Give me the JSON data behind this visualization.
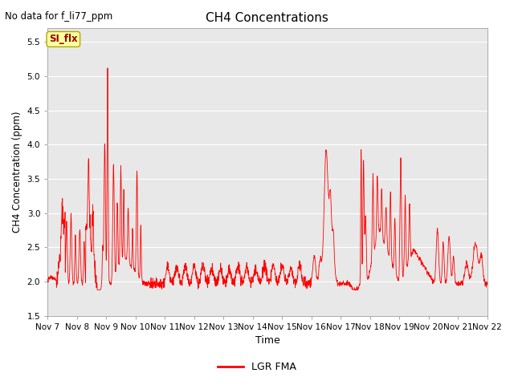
{
  "title": "CH4 Concentrations",
  "xlabel": "Time",
  "ylabel": "CH4 Concentration (ppm)",
  "top_left_text": "No data for f_li77_ppm",
  "legend_label": "LGR FMA",
  "legend_color": "#ff0000",
  "line_color": "#ff0000",
  "background_color": "#e8e8e8",
  "ylim": [
    1.5,
    5.7
  ],
  "yticks": [
    1.5,
    2.0,
    2.5,
    3.0,
    3.5,
    4.0,
    4.5,
    5.0,
    5.5
  ],
  "xlim": [
    7,
    22
  ],
  "xtick_positions": [
    7,
    8,
    9,
    10,
    11,
    12,
    13,
    14,
    15,
    16,
    17,
    18,
    19,
    20,
    21,
    22
  ],
  "xtick_labels": [
    "Nov 7",
    "Nov 8",
    "Nov 9",
    "Nov 10",
    "Nov 11",
    "Nov 12",
    "Nov 13",
    "Nov 14",
    "Nov 15",
    "Nov 16",
    "Nov 17",
    "Nov 18",
    "Nov 19",
    "Nov 20",
    "Nov 21",
    "Nov 22"
  ],
  "si_flx_box_color": "#ffffa0",
  "si_flx_text_color": "#990000",
  "si_flx_label": "SI_flx",
  "grid_color": "#ffffff",
  "spine_color": "#aaaaaa",
  "figsize": [
    6.4,
    4.8
  ],
  "dpi": 100
}
